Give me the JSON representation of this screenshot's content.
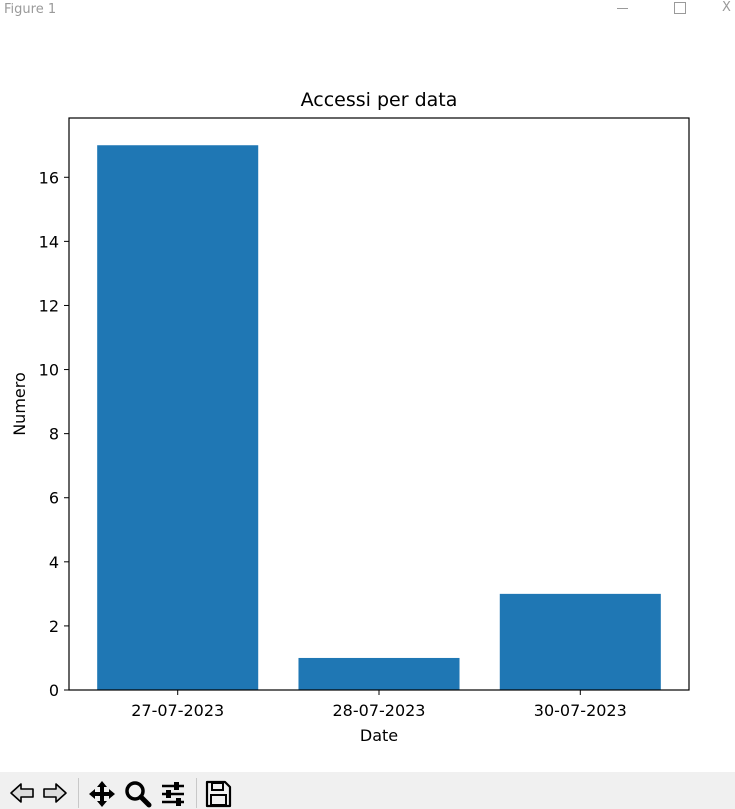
{
  "window": {
    "title": "Figure 1",
    "controls": {
      "minimize": "",
      "maximize": "",
      "close": "X"
    }
  },
  "chart_data": {
    "type": "bar",
    "title": "Accessi per data",
    "xlabel": "Date",
    "ylabel": "Numero",
    "categories": [
      "27-07-2023",
      "28-07-2023",
      "30-07-2023"
    ],
    "values": [
      17,
      1,
      3
    ],
    "ylim": [
      0,
      17.85
    ],
    "yticks": [
      0,
      2,
      4,
      6,
      8,
      10,
      12,
      14,
      16
    ],
    "bar_color": "#1f77b4",
    "grid": false,
    "legend": "none"
  },
  "toolbar": {
    "buttons": [
      {
        "name": "back-button",
        "icon": "arrow-left-icon"
      },
      {
        "name": "forward-button",
        "icon": "arrow-right-icon"
      },
      {
        "name": "pan-button",
        "icon": "move-icon"
      },
      {
        "name": "zoom-button",
        "icon": "zoom-icon"
      },
      {
        "name": "configure-subplots-button",
        "icon": "sliders-icon"
      },
      {
        "name": "save-button",
        "icon": "save-icon"
      }
    ]
  }
}
